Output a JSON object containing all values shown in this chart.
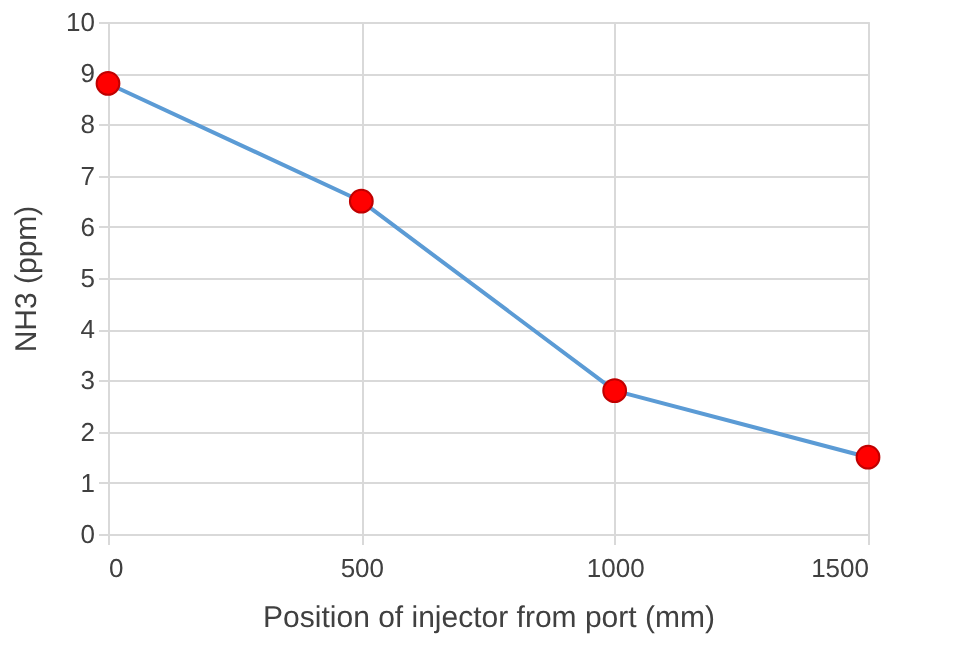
{
  "chart_data": {
    "type": "line",
    "xlabel": "Position of injector from port  (mm)",
    "ylabel": "NH3    (ppm)",
    "x": [
      0,
      500,
      1000,
      1500
    ],
    "series": [
      {
        "color": "#5b9bd5",
        "colors": [
          "#ff0000",
          "#ff0000",
          "#ff0000",
          "#ff0000"
        ],
        "values": [
          8.8,
          6.5,
          2.8,
          1.5
        ]
      }
    ],
    "xlim": [
      0,
      1500
    ],
    "xticks": [
      0,
      500,
      1000,
      1500
    ],
    "ylim": [
      0,
      10
    ],
    "yticks": [
      0,
      1,
      2,
      3,
      4,
      5,
      6,
      7,
      8,
      9,
      10
    ],
    "grid": true,
    "marker": "circle",
    "line_style": "solid"
  }
}
